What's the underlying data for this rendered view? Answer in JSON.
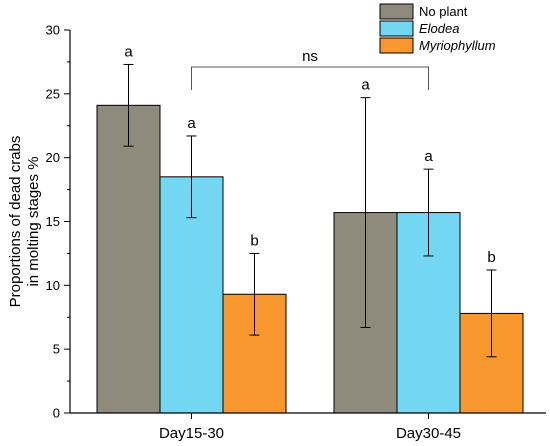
{
  "chart_data": {
    "type": "bar",
    "ylabel_lines": [
      "Proportions of dead crabs",
      "in molting stages %"
    ],
    "xlabel": "",
    "ylim": [
      0,
      30
    ],
    "yticks": [
      "0",
      "5",
      "10",
      "15",
      "20",
      "25",
      "30"
    ],
    "categories": [
      "Day15-30",
      "Day30-45"
    ],
    "series": [
      {
        "name": "No plant",
        "italic": false,
        "color": "#8e8b7d",
        "values": [
          24.1,
          15.7
        ],
        "err": [
          3.2,
          9.0
        ],
        "labels": [
          "a",
          "a"
        ]
      },
      {
        "name": "Elodea",
        "italic": true,
        "color": "#73d6f2",
        "values": [
          18.5,
          15.7
        ],
        "err": [
          3.2,
          3.4
        ],
        "labels": [
          "a",
          "a"
        ]
      },
      {
        "name": "Myriophyllum",
        "italic": true,
        "color": "#f8972e",
        "values": [
          9.3,
          7.8
        ],
        "err": [
          3.2,
          3.4
        ],
        "labels": [
          "b",
          "b"
        ]
      }
    ],
    "bracket_label": "ns",
    "legend_position": "top-right"
  }
}
